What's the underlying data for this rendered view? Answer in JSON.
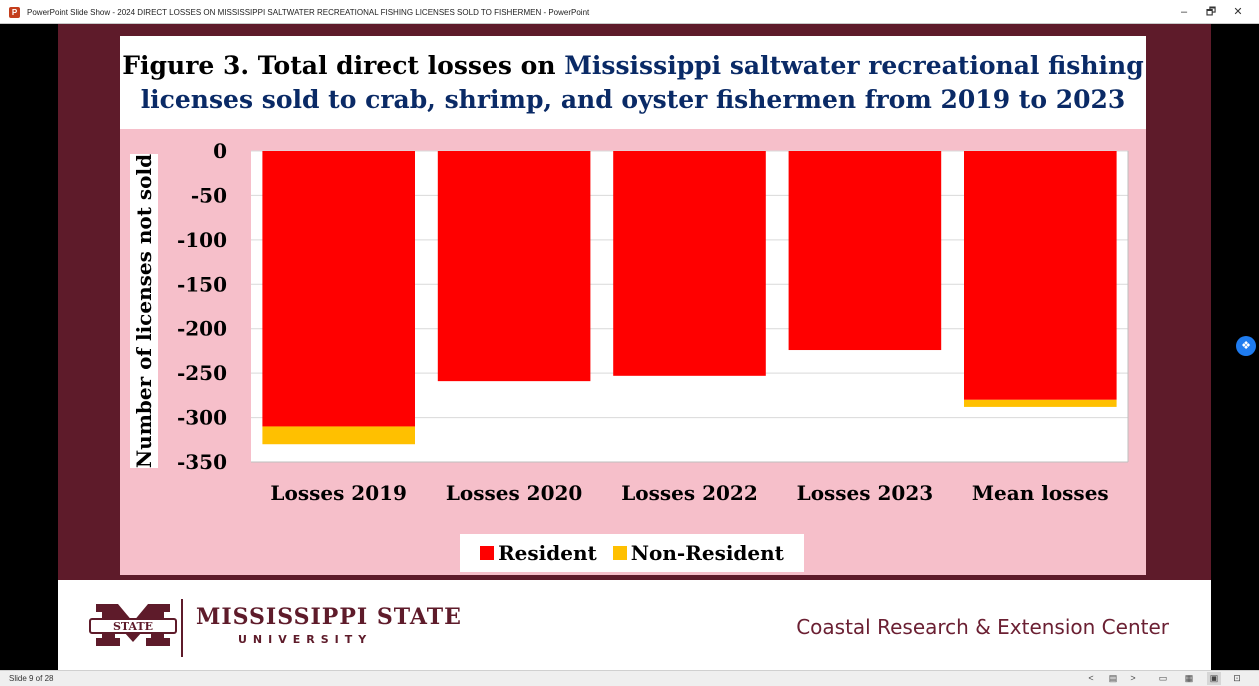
{
  "window": {
    "title": "PowerPoint Slide Show - 2024 DIRECT LOSSES ON MISSISSIPPI SALTWATER RECREATIONAL FISHING LICENSES SOLD TO FISHERMEN - PowerPoint",
    "minimize": "–",
    "restore": "🗗",
    "close": "✕",
    "app_icon": "P"
  },
  "slide": {
    "title_part1": "Figure 3. Total direct losses on ",
    "title_part2": "Mississippi saltwater recreational fishing licenses sold to crab, shrimp, and oyster fishermen from 2019 to 2023",
    "legend": {
      "resident": "Resident",
      "nonresident": "Non-Resident"
    },
    "footer": {
      "university_name": "MISSISSIPPI STATE",
      "university_sub": "UNIVERSITY",
      "logo_text": "STATE",
      "center": "Coastal Research & Extension Center"
    }
  },
  "chart_data": {
    "type": "bar",
    "stacked": true,
    "ylabel": "Number of licenses not sold",
    "ylim": [
      -350,
      0
    ],
    "yticks": [
      0,
      -50,
      -100,
      -150,
      -200,
      -250,
      -300,
      -350
    ],
    "categories": [
      "Losses 2019",
      "Losses 2020",
      "Losses 2022",
      "Losses 2023",
      "Mean losses"
    ],
    "series": [
      {
        "name": "Resident",
        "color": "#ff0000",
        "values": [
          -310,
          -259,
          -253,
          -224,
          -280
        ]
      },
      {
        "name": "Non-Resident",
        "color": "#ffc000",
        "values": [
          -20,
          0,
          0,
          0,
          -8
        ]
      }
    ],
    "grid": true,
    "legend_position": "bottom"
  },
  "statusbar": {
    "slide_counter": "Slide 9 of 28",
    "prev": "<",
    "next": ">"
  },
  "icons": [
    "powerpoint-app-icon",
    "dropbox-icon",
    "msu-logo"
  ]
}
